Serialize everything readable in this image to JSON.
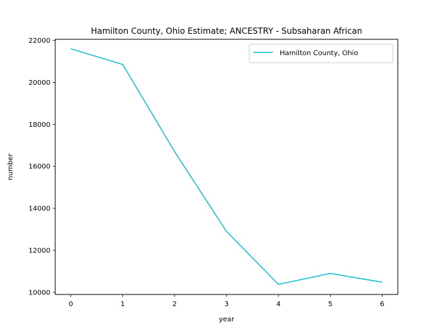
{
  "chart_data": {
    "type": "line",
    "title": "Hamilton County, Ohio Estimate; ANCESTRY - Subsaharan African",
    "xlabel": "year",
    "ylabel": "number",
    "x": [
      0,
      1,
      2,
      3,
      4,
      5,
      6
    ],
    "series": [
      {
        "name": "Hamilton County, Ohio",
        "color": "#17becf",
        "values": [
          21600,
          20850,
          16700,
          12900,
          10380,
          10900,
          10480
        ]
      }
    ],
    "xlim": [
      -0.3,
      6.3
    ],
    "ylim": [
      9900,
      22050
    ],
    "xticks": [
      0,
      1,
      2,
      3,
      4,
      5,
      6
    ],
    "yticks": [
      10000,
      12000,
      14000,
      16000,
      18000,
      20000,
      22000
    ],
    "grid": false,
    "legend": "upper right"
  }
}
